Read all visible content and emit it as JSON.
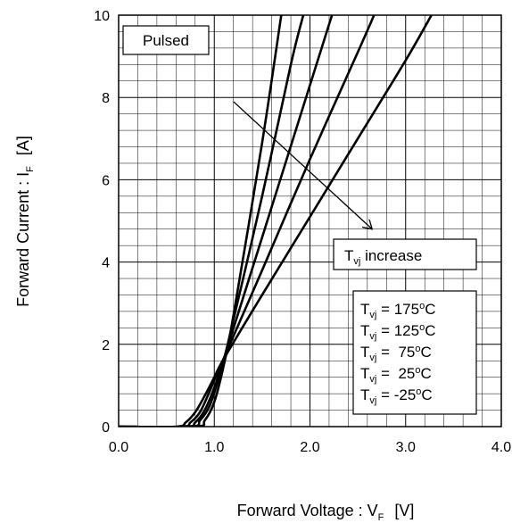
{
  "chart_data": {
    "type": "line",
    "xlabel": {
      "main": "Forward Voltage : V",
      "sub": "F",
      "unit": "[V]"
    },
    "ylabel": {
      "main": "Forward Current : I",
      "sub": "F",
      "unit": "[A]"
    },
    "xlim": [
      0,
      4
    ],
    "ylim": [
      0,
      10
    ],
    "x_ticks": [
      "0.0",
      "1.0",
      "2.0",
      "3.0",
      "4.0"
    ],
    "y_ticks": [
      "0",
      "2",
      "4",
      "6",
      "8",
      "10"
    ],
    "grid": true,
    "series": [
      {
        "temp": "175",
        "x": [
          0.0,
          0.6,
          0.7,
          0.8,
          0.9,
          1.0,
          1.1,
          1.5,
          2.0,
          2.5,
          3.0,
          3.27
        ],
        "y": [
          0.0,
          0.0,
          0.1,
          0.35,
          0.75,
          1.2,
          1.65,
          3.2,
          5.1,
          7.0,
          8.9,
          10.0
        ]
      },
      {
        "temp": "125",
        "x": [
          0.0,
          0.65,
          0.75,
          0.85,
          0.95,
          1.05,
          1.5,
          2.0,
          2.5,
          2.67
        ],
        "y": [
          0.0,
          0.0,
          0.1,
          0.35,
          0.85,
          1.4,
          3.8,
          6.5,
          9.1,
          10.0
        ]
      },
      {
        "temp": "75",
        "x": [
          0.0,
          0.7,
          0.8,
          0.9,
          1.0,
          1.1,
          1.5,
          2.0,
          2.23
        ],
        "y": [
          0.0,
          0.0,
          0.1,
          0.4,
          0.95,
          1.65,
          4.6,
          8.3,
          10.0
        ]
      },
      {
        "temp": "25",
        "x": [
          0.0,
          0.75,
          0.85,
          0.95,
          1.05,
          1.15,
          1.5,
          1.8,
          1.93
        ],
        "y": [
          0.0,
          0.0,
          0.15,
          0.5,
          1.2,
          2.1,
          5.6,
          8.8,
          10.0
        ]
      },
      {
        "temp": "-25",
        "x": [
          0.0,
          0.8,
          0.9,
          1.0,
          1.1,
          1.2,
          1.5,
          1.7
        ],
        "y": [
          0.0,
          0.0,
          0.15,
          0.6,
          1.5,
          2.7,
          6.9,
          10.0
        ]
      }
    ],
    "annotations": {
      "pulsed": "Pulsed",
      "arrow_label": {
        "main": "T",
        "sub": "vj",
        "text": " increase"
      },
      "legend": [
        {
          "main": "T",
          "sub": "vj",
          "eq": " = 175",
          "deg": "o",
          "unit": "C"
        },
        {
          "main": "T",
          "sub": "vj",
          "eq": " = 125",
          "deg": "o",
          "unit": "C"
        },
        {
          "main": "T",
          "sub": "vj",
          "eq": " =  75",
          "deg": "o",
          "unit": "C"
        },
        {
          "main": "T",
          "sub": "vj",
          "eq": " =  25",
          "deg": "o",
          "unit": "C"
        },
        {
          "main": "T",
          "sub": "vj",
          "eq": " = -25",
          "deg": "o",
          "unit": "C"
        }
      ],
      "arrow": {
        "from": [
          1.2,
          7.9
        ],
        "to": [
          2.65,
          4.8
        ]
      }
    }
  }
}
